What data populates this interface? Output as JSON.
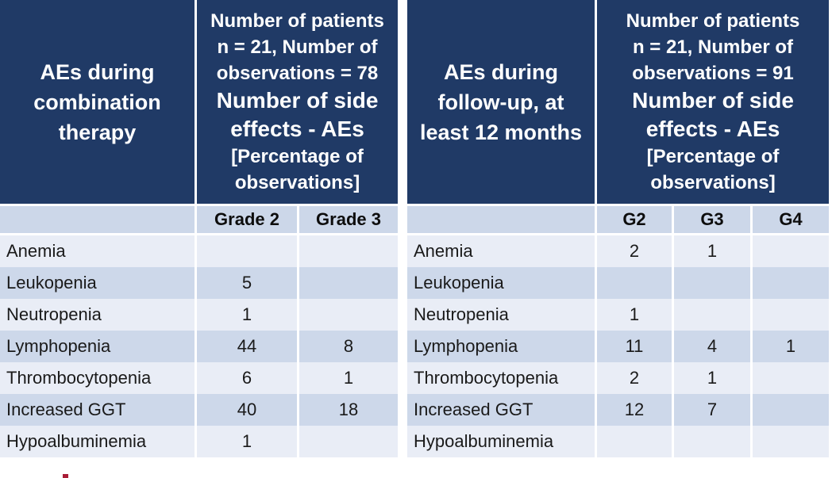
{
  "colors": {
    "header_bg": "#203a66",
    "header_text": "#ffffff",
    "grade_row_bg": "#ccd7e9",
    "row_light": "#e9edf6",
    "row_medium": "#cdd8ea",
    "body_text": "#1a1a1a",
    "artifact_red": "#a91d36"
  },
  "tables": [
    {
      "title": "AEs during\ncombination\ntherapy",
      "header_info": "Number of patients\nn = 21, Number of\nobservations = 78",
      "header_side_effects": "Number of side\neffects - AEs",
      "header_bracket": "[Percentage of\nobservations]",
      "grade_columns": [
        "Grade 2",
        "Grade 3"
      ],
      "rows": [
        {
          "name": "Anemia",
          "values": [
            "",
            ""
          ]
        },
        {
          "name": "Leukopenia",
          "values": [
            "5",
            ""
          ]
        },
        {
          "name": "Neutropenia",
          "values": [
            "1",
            ""
          ]
        },
        {
          "name": "Lymphopenia",
          "values": [
            "44",
            "8"
          ]
        },
        {
          "name": "Thrombocytopenia",
          "values": [
            "6",
            "1"
          ]
        },
        {
          "name": "Increased GGT",
          "values": [
            "40",
            "18"
          ]
        },
        {
          "name": "Hypoalbuminemia",
          "values": [
            "1",
            ""
          ]
        }
      ]
    },
    {
      "title": "AEs during\nfollow-up, at\nleast 12 months",
      "header_info": "Number of patients\nn = 21, Number of\nobservations = 91",
      "header_side_effects": "Number of side\neffects - AEs",
      "header_bracket": "[Percentage of\nobservations]",
      "grade_columns": [
        "G2",
        "G3",
        "G4"
      ],
      "rows": [
        {
          "name": "Anemia",
          "values": [
            "2",
            "1",
            ""
          ]
        },
        {
          "name": "Leukopenia",
          "values": [
            "",
            "",
            ""
          ]
        },
        {
          "name": "Neutropenia",
          "values": [
            "1",
            "",
            ""
          ]
        },
        {
          "name": "Lymphopenia",
          "values": [
            "11",
            "4",
            "1"
          ]
        },
        {
          "name": "Thrombocytopenia",
          "values": [
            "2",
            "1",
            ""
          ]
        },
        {
          "name": "Increased GGT",
          "values": [
            "12",
            "7",
            ""
          ]
        },
        {
          "name": "Hypoalbuminemia",
          "values": [
            "",
            "",
            ""
          ]
        }
      ]
    }
  ]
}
